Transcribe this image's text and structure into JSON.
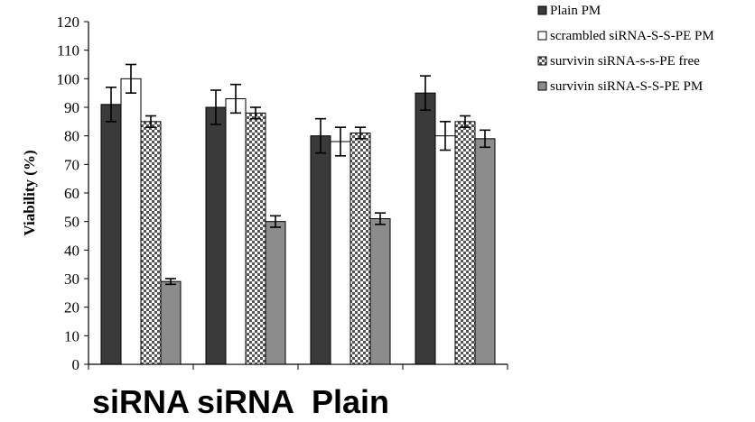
{
  "chart_data": {
    "type": "bar",
    "title": "",
    "xlabel": "",
    "ylabel": "Viability (%)",
    "ylim": [
      0,
      120
    ],
    "yticks": [
      0,
      10,
      20,
      30,
      40,
      50,
      60,
      70,
      80,
      90,
      100,
      110,
      120
    ],
    "grid": false,
    "legend_position": "top-right",
    "categories": [
      "siRNA",
      "siRNA",
      "Plain",
      ""
    ],
    "series": [
      {
        "name": "Plain PM",
        "color": "#3a3a3a",
        "pattern": "solid",
        "values": [
          91,
          90,
          80,
          95
        ],
        "errors": [
          6,
          6,
          6,
          6
        ]
      },
      {
        "name": "scrambled siRNA-S-S-PE PM",
        "color": "#ffffff",
        "pattern": "open",
        "values": [
          100,
          93,
          78,
          80
        ],
        "errors": [
          5,
          5,
          5,
          5
        ]
      },
      {
        "name": "survivin siRNA-s-s-PE free",
        "color": "#9a9a9a",
        "pattern": "checker",
        "values": [
          85,
          88,
          81,
          85
        ],
        "errors": [
          2,
          2,
          2,
          2
        ]
      },
      {
        "name": "survivin siRNA-S-S-PE PM",
        "color": "#8c8c8c",
        "pattern": "solid",
        "values": [
          29,
          50,
          51,
          79
        ],
        "errors": [
          1,
          2,
          2,
          3
        ]
      }
    ]
  }
}
